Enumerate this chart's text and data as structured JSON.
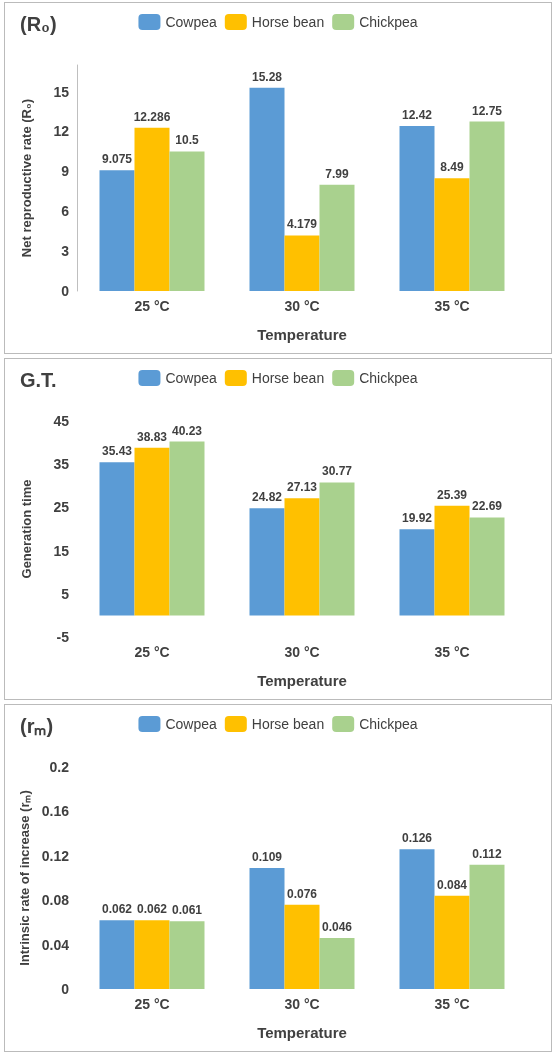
{
  "chart_data": [
    {
      "type": "bar",
      "title": "(R₀)",
      "xlabel": "Temperature",
      "ylabel": "Net reproductive rate (R₀)",
      "categories": [
        "25 °C",
        "30 °C",
        "35 °C"
      ],
      "series": [
        {
          "name": "Cowpea",
          "color": "#5b9bd5",
          "values": [
            9.075,
            15.28,
            12.42
          ]
        },
        {
          "name": "Horse bean",
          "color": "#ffc000",
          "values": [
            12.286,
            4.179,
            8.49
          ]
        },
        {
          "name": "Chickpea",
          "color": "#a9d18e",
          "values": [
            10.5,
            7.99,
            12.75
          ]
        }
      ],
      "ylim": [
        0,
        17
      ],
      "yticks": [
        0,
        3,
        6,
        9,
        12,
        15
      ],
      "data_labels": true,
      "legend": "top",
      "grid": false
    },
    {
      "type": "bar",
      "title": "G.T.",
      "xlabel": "Temperature",
      "ylabel": "Generation time",
      "categories": [
        "25 °C",
        "30 °C",
        "35 °C"
      ],
      "series": [
        {
          "name": "Cowpea",
          "color": "#5b9bd5",
          "values": [
            35.43,
            24.82,
            19.92
          ]
        },
        {
          "name": "Horse bean",
          "color": "#ffc000",
          "values": [
            38.83,
            27.13,
            25.39
          ]
        },
        {
          "name": "Chickpea",
          "color": "#a9d18e",
          "values": [
            40.23,
            30.77,
            22.69
          ]
        }
      ],
      "ylim": [
        -5,
        45
      ],
      "yticks": [
        -5,
        5,
        15,
        25,
        35,
        45
      ],
      "data_labels": true,
      "legend": "top",
      "grid": false
    },
    {
      "type": "bar",
      "title": "(rₘ)",
      "xlabel": "Temperature",
      "ylabel": "Intrinsic rate of increase (rₘ)",
      "categories": [
        "25 °C",
        "30 °C",
        "35 °C"
      ],
      "series": [
        {
          "name": "Cowpea",
          "color": "#5b9bd5",
          "values": [
            0.062,
            0.109,
            0.126
          ]
        },
        {
          "name": "Horse bean",
          "color": "#ffc000",
          "values": [
            0.062,
            0.076,
            0.084
          ]
        },
        {
          "name": "Chickpea",
          "color": "#a9d18e",
          "values": [
            0.061,
            0.046,
            0.112
          ]
        }
      ],
      "ylim": [
        0,
        0.2
      ],
      "yticks": [
        0,
        0.04,
        0.08,
        0.12,
        0.16,
        0.2
      ],
      "data_labels": true,
      "legend": "top",
      "grid": false
    }
  ]
}
